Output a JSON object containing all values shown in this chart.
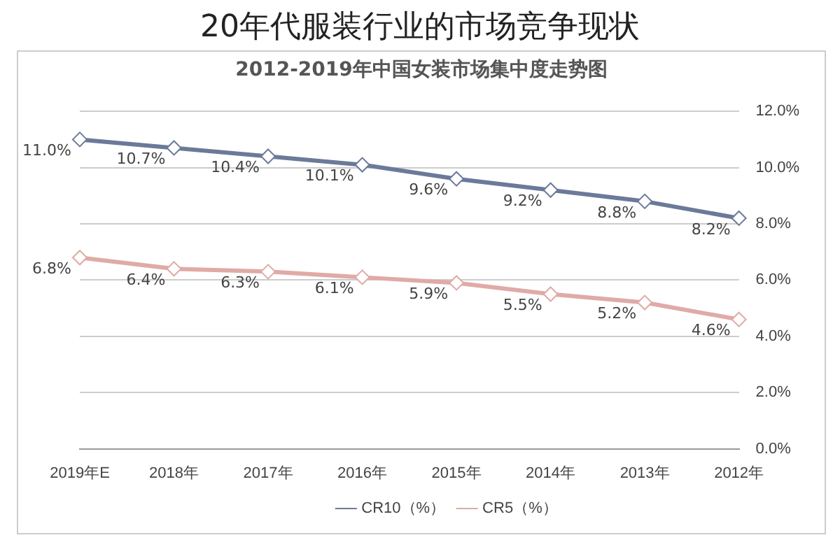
{
  "chart_data": {
    "type": "line",
    "title": "20年代服装行业的市场竞争现状",
    "subtitle": "2012-2019年中国女装市场集中度走势图",
    "categories": [
      "2019年E",
      "2018年",
      "2017年",
      "2016年",
      "2015年",
      "2014年",
      "2013年",
      "2012年"
    ],
    "series": [
      {
        "name": "CR10（%）",
        "color": "#6b7a99",
        "values": [
          11.0,
          10.7,
          10.4,
          10.1,
          9.6,
          9.2,
          8.8,
          8.2
        ],
        "value_labels": [
          "11.0%",
          "10.7%",
          "10.4%",
          "10.1%",
          "9.6%",
          "9.2%",
          "8.8%",
          "8.2%"
        ]
      },
      {
        "name": "CR5（%）",
        "color": "#e0aaa6",
        "values": [
          6.8,
          6.4,
          6.3,
          6.1,
          5.9,
          5.5,
          5.2,
          4.6
        ],
        "value_labels": [
          "6.8%",
          "6.4%",
          "6.3%",
          "6.1%",
          "5.9%",
          "5.5%",
          "5.2%",
          "4.6%"
        ]
      }
    ],
    "ylim": [
      0,
      12
    ],
    "yticks": [
      {
        "value": 0,
        "label": "0.0%"
      },
      {
        "value": 2,
        "label": "2.0%"
      },
      {
        "value": 4,
        "label": "4.0%"
      },
      {
        "value": 6,
        "label": "6.0%"
      },
      {
        "value": 8,
        "label": "8.0%"
      },
      {
        "value": 10,
        "label": "10.0%"
      },
      {
        "value": 12,
        "label": "12.0%"
      }
    ],
    "grid": "y",
    "legend": "bottom",
    "marker": "diamond",
    "line_style": "solid"
  }
}
